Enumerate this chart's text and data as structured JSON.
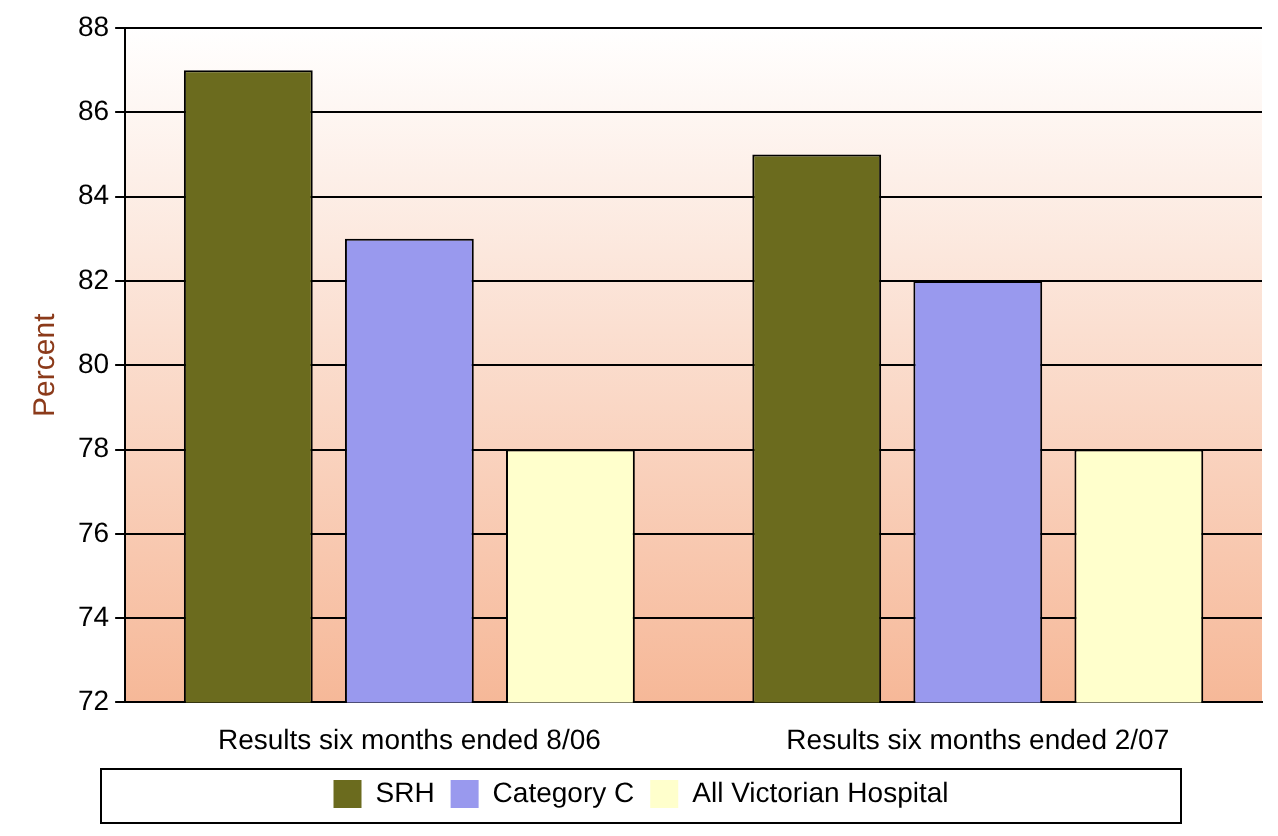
{
  "chart_data": {
    "type": "bar",
    "ylabel": "Percent",
    "categories": [
      "Results six months ended 8/06",
      "Results six months ended 2/07"
    ],
    "series": [
      {
        "name": "SRH",
        "color": "#6b6b1e",
        "values": [
          87,
          85
        ]
      },
      {
        "name": "Category C",
        "color": "#9999ee",
        "values": [
          83,
          82
        ]
      },
      {
        "name": "All Victorian Hospital",
        "color": "#ffffcc",
        "values": [
          78,
          78
        ]
      }
    ],
    "ylim": [
      72,
      88
    ],
    "yticks": [
      72,
      74,
      76,
      78,
      80,
      82,
      84,
      86,
      88
    ],
    "grid": "y",
    "legend": "bottom"
  }
}
